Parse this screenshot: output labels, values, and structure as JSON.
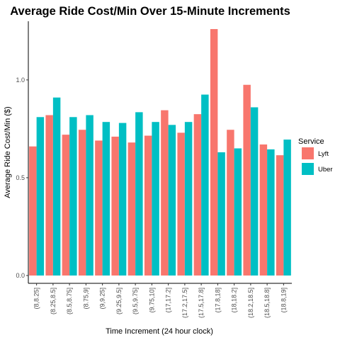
{
  "chart_data": {
    "type": "bar",
    "title": "Average Ride Cost/Min Over 15-Minute Increments",
    "xlabel": "Time Increment (24 hour clock)",
    "ylabel": "Average Ride Cost/Min ($)",
    "ylim": [
      -0.04,
      1.3
    ],
    "yticks": [
      "0.0",
      "0.5",
      "1.0"
    ],
    "categories": [
      "(8,8.25]",
      "(8.25,8.5]",
      "(8.5,8.75]",
      "(8.75,9]",
      "(9,9.25]",
      "(9.25,9.5]",
      "(9.5,9.75]",
      "(9.75,10]",
      "(17,17.2]",
      "(17.2,17.5]",
      "(17.5,17.8]",
      "(17.8,18]",
      "(18,18.2]",
      "(18.2,18.5]",
      "(18.5,18.8]",
      "(18.8,19]"
    ],
    "legend_title": "Service",
    "legend_position": "right",
    "grid": false,
    "series": [
      {
        "name": "Lyft",
        "color": "#F8766D",
        "values": [
          0.66,
          0.82,
          0.72,
          0.745,
          0.69,
          0.71,
          0.68,
          0.715,
          0.845,
          0.73,
          0.825,
          1.26,
          0.745,
          0.975,
          0.67,
          0.615
        ]
      },
      {
        "name": "Uber",
        "color": "#00BFC4",
        "values": [
          0.81,
          0.91,
          0.81,
          0.82,
          0.785,
          0.78,
          0.835,
          0.785,
          0.77,
          0.785,
          0.925,
          0.63,
          0.65,
          0.86,
          0.645,
          0.695
        ]
      }
    ]
  }
}
